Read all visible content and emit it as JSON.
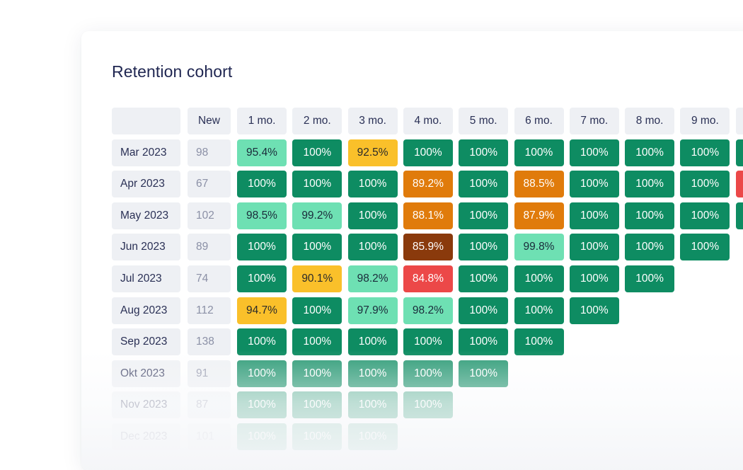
{
  "title": "Retention cohort",
  "headers": [
    "New",
    "1 mo.",
    "2 mo.",
    "3 mo.",
    "4 mo.",
    "5 mo.",
    "6 mo.",
    "7 mo.",
    "8 mo.",
    "9 mo."
  ],
  "colors": {
    "dark_green": "#0e8c62",
    "light_green": "#6ee0b3",
    "yellow": "#fac02a",
    "orange": "#e07b0b",
    "brown": "#8a3a0c",
    "red": "#ec4848",
    "header_bg": "#eef0f4",
    "title": "#1f2651"
  },
  "rows": [
    {
      "label": "Mar 2023",
      "new": "98",
      "cells": [
        {
          "v": "95.4%",
          "c": "light"
        },
        {
          "v": "100%",
          "c": "dark"
        },
        {
          "v": "92.5%",
          "c": "yellow"
        },
        {
          "v": "100%",
          "c": "dark"
        },
        {
          "v": "100%",
          "c": "dark"
        },
        {
          "v": "100%",
          "c": "dark"
        },
        {
          "v": "100%",
          "c": "dark"
        },
        {
          "v": "100%",
          "c": "dark"
        },
        {
          "v": "100%",
          "c": "dark"
        },
        {
          "v": "",
          "c": "dark"
        }
      ]
    },
    {
      "label": "Apr 2023",
      "new": "67",
      "cells": [
        {
          "v": "100%",
          "c": "dark"
        },
        {
          "v": "100%",
          "c": "dark"
        },
        {
          "v": "100%",
          "c": "dark"
        },
        {
          "v": "89.2%",
          "c": "orange"
        },
        {
          "v": "100%",
          "c": "dark"
        },
        {
          "v": "88.5%",
          "c": "orange"
        },
        {
          "v": "100%",
          "c": "dark"
        },
        {
          "v": "100%",
          "c": "dark"
        },
        {
          "v": "100%",
          "c": "dark"
        },
        {
          "v": "",
          "c": "red"
        }
      ]
    },
    {
      "label": "May 2023",
      "new": "102",
      "cells": [
        {
          "v": "98.5%",
          "c": "light"
        },
        {
          "v": "99.2%",
          "c": "light"
        },
        {
          "v": "100%",
          "c": "dark"
        },
        {
          "v": "88.1%",
          "c": "orange"
        },
        {
          "v": "100%",
          "c": "dark"
        },
        {
          "v": "87.9%",
          "c": "orange"
        },
        {
          "v": "100%",
          "c": "dark"
        },
        {
          "v": "100%",
          "c": "dark"
        },
        {
          "v": "100%",
          "c": "dark"
        },
        {
          "v": "",
          "c": "dark"
        }
      ]
    },
    {
      "label": "Jun 2023",
      "new": "89",
      "cells": [
        {
          "v": "100%",
          "c": "dark"
        },
        {
          "v": "100%",
          "c": "dark"
        },
        {
          "v": "100%",
          "c": "dark"
        },
        {
          "v": "85.9%",
          "c": "brown"
        },
        {
          "v": "100%",
          "c": "dark"
        },
        {
          "v": "99.8%",
          "c": "light"
        },
        {
          "v": "100%",
          "c": "dark"
        },
        {
          "v": "100%",
          "c": "dark"
        },
        {
          "v": "100%",
          "c": "dark"
        }
      ]
    },
    {
      "label": "Jul 2023",
      "new": "74",
      "cells": [
        {
          "v": "100%",
          "c": "dark"
        },
        {
          "v": "90.1%",
          "c": "yellow"
        },
        {
          "v": "98.2%",
          "c": "light"
        },
        {
          "v": "84.8%",
          "c": "red"
        },
        {
          "v": "100%",
          "c": "dark"
        },
        {
          "v": "100%",
          "c": "dark"
        },
        {
          "v": "100%",
          "c": "dark"
        },
        {
          "v": "100%",
          "c": "dark"
        }
      ]
    },
    {
      "label": "Aug 2023",
      "new": "112",
      "cells": [
        {
          "v": "94.7%",
          "c": "yellow"
        },
        {
          "v": "100%",
          "c": "dark"
        },
        {
          "v": "97.9%",
          "c": "light"
        },
        {
          "v": "98.2%",
          "c": "light"
        },
        {
          "v": "100%",
          "c": "dark"
        },
        {
          "v": "100%",
          "c": "dark"
        },
        {
          "v": "100%",
          "c": "dark"
        }
      ]
    },
    {
      "label": "Sep 2023",
      "new": "138",
      "cells": [
        {
          "v": "100%",
          "c": "dark"
        },
        {
          "v": "100%",
          "c": "dark"
        },
        {
          "v": "100%",
          "c": "dark"
        },
        {
          "v": "100%",
          "c": "dark"
        },
        {
          "v": "100%",
          "c": "dark"
        },
        {
          "v": "100%",
          "c": "dark"
        }
      ]
    },
    {
      "label": "Okt 2023",
      "new": "91",
      "cells": [
        {
          "v": "100%",
          "c": "dark"
        },
        {
          "v": "100%",
          "c": "dark"
        },
        {
          "v": "100%",
          "c": "dark"
        },
        {
          "v": "100%",
          "c": "dark"
        },
        {
          "v": "100%",
          "c": "dark"
        }
      ]
    },
    {
      "label": "Nov 2023",
      "new": "87",
      "cells": [
        {
          "v": "100%",
          "c": "dark"
        },
        {
          "v": "100%",
          "c": "dark"
        },
        {
          "v": "100%",
          "c": "dark"
        },
        {
          "v": "100%",
          "c": "dark"
        }
      ]
    },
    {
      "label": "Dec 2023",
      "new": "101",
      "cells": [
        {
          "v": "100%",
          "c": "dark"
        },
        {
          "v": "100%",
          "c": "dark"
        },
        {
          "v": "100%",
          "c": "dark"
        }
      ]
    }
  ]
}
